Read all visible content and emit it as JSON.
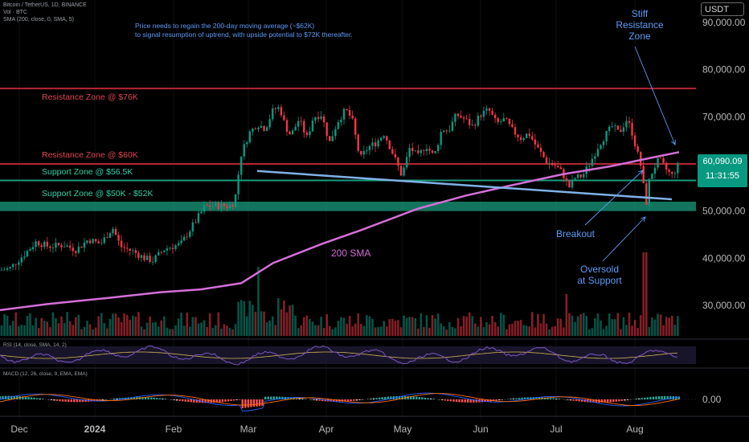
{
  "header": {
    "line1": "Bitcoin / TetherUS, 1D, BINANCE",
    "line2": "Vol · BTC",
    "line3": "SMA (200, close, 0, SMA, 5)"
  },
  "note": {
    "line1": "Price needs to regain the 200-day moving average (~$62K)",
    "line2": "to signal resumption of uptrend, with upside potential to $72K thereafter."
  },
  "zones": {
    "resistance_76": "Resistance Zone @ $76K",
    "resistance_60": "Resistance Zone @ $60K",
    "support_565": "Support Zone @ $56.5K",
    "support_50_52": "Support Zone @ $50K - $52K"
  },
  "annotations": {
    "stiff_resistance": [
      "Stiff",
      "Resistance",
      "Zone"
    ],
    "breakout": "Breakout",
    "oversold": [
      "Oversold",
      "at Support"
    ],
    "sma200": "200 SMA"
  },
  "price_scale": {
    "currency": "USDT",
    "ticks": [
      "90,000.00",
      "80,000.00",
      "70,000.00",
      "60,000.00",
      "50,000.00",
      "40,000.00",
      "30,000.00"
    ],
    "current_price": "60,090.09",
    "countdown": "11:31:55"
  },
  "rsi": {
    "label": "RSI (14, close, SMA, 14, 2)"
  },
  "macd": {
    "label": "MACD (12, 26, close, 9, EMA, EMA)",
    "tick": "0.00"
  },
  "time_axis": [
    "Dec",
    "2024",
    "Feb",
    "Mar",
    "Apr",
    "May",
    "Jun",
    "Jul",
    "Aug"
  ],
  "colors": {
    "up": "#089981",
    "down": "#f23645",
    "sma": "#d56fd8",
    "resistance": "#b22833",
    "support": "#1a9b7c",
    "trendline": "#7fb2e5",
    "annotation": "#5b9cf6"
  },
  "chart_data": {
    "type": "candlestick",
    "symbol": "Bitcoin / TetherUS",
    "interval": "1D",
    "ylim": [
      25000,
      93000
    ],
    "price_series": {
      "name": "Bitcoin / TetherUS",
      "x": [
        "Dec",
        "2024",
        "Feb",
        "Mar",
        "Apr",
        "May",
        "Jun",
        "Jul",
        "Aug"
      ],
      "close": [
        37500,
        42000,
        43000,
        51000,
        71000,
        63000,
        68000,
        55500,
        60090
      ]
    },
    "sma200": {
      "name": "200 SMA",
      "x": [
        "Dec",
        "2024",
        "Feb",
        "Mar",
        "Apr",
        "May",
        "Jun",
        "Jul",
        "Aug"
      ],
      "values": [
        29000,
        30800,
        32000,
        34000,
        43000,
        50000,
        55000,
        59500,
        62500
      ]
    },
    "horizontal_levels": [
      {
        "name": "Resistance Zone @ $76K",
        "value": 76000
      },
      {
        "name": "Resistance Zone @ $60K",
        "value": 60000
      },
      {
        "name": "Support Zone @ $56.5K",
        "value": 56500
      },
      {
        "name": "Support Zone @ $50K - $52K",
        "low": 50000,
        "high": 52000
      }
    ],
    "trendline": {
      "from": {
        "x": "Mar",
        "y": 58500
      },
      "to": {
        "x": "Aug",
        "y": 52500
      }
    },
    "last_price": 60090.09
  }
}
